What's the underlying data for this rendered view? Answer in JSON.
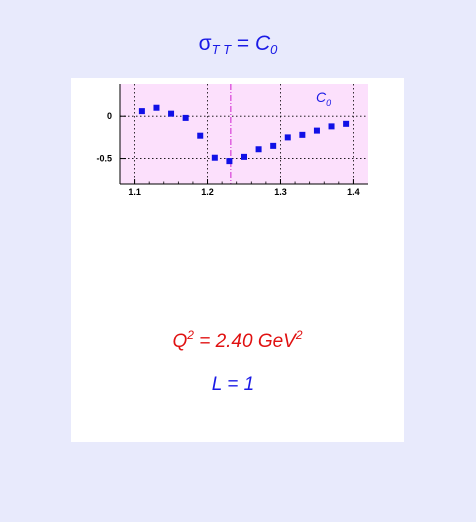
{
  "header": {
    "sigma": "σ",
    "sigma_sub": "T T",
    "equals": " = ",
    "c": "C",
    "c_sub": "0"
  },
  "panel": {
    "q2_prefix": "Q",
    "q2_exp": "2",
    "q2_value": " = 2.40 GeV",
    "q2_unit_exp": "2",
    "l_text": "L = 1"
  },
  "colors": {
    "page_background": "#e8eafc",
    "plot_background": "#fce0fc",
    "markers": "#1010e6",
    "marker_line": "#d020d0",
    "title_text": "#1a1ae6",
    "q2_text": "#e01010"
  },
  "chart_data": {
    "type": "scatter",
    "legend": {
      "text": "C",
      "sub": "0",
      "placement": "top-right"
    },
    "xlim": [
      1.08,
      1.42
    ],
    "ylim": [
      -0.8,
      0.38
    ],
    "x_ticks": [
      1.1,
      1.2,
      1.3,
      1.4
    ],
    "x_tick_labels": [
      "1.1",
      "1.2",
      "1.3",
      "1.4"
    ],
    "y_ticks": [
      0,
      -0.5
    ],
    "y_tick_labels": [
      "0",
      "-0.5"
    ],
    "grid": true,
    "vertical_marker_x": 1.232,
    "series": [
      {
        "x": [
          1.11,
          1.13,
          1.15,
          1.17,
          1.19,
          1.21,
          1.23,
          1.25,
          1.27,
          1.29,
          1.31,
          1.33,
          1.35,
          1.37,
          1.39
        ],
        "y": [
          0.06,
          0.1,
          0.03,
          -0.02,
          -0.23,
          -0.49,
          -0.53,
          -0.48,
          -0.39,
          -0.35,
          -0.25,
          -0.22,
          -0.17,
          -0.12,
          -0.09
        ]
      }
    ]
  }
}
